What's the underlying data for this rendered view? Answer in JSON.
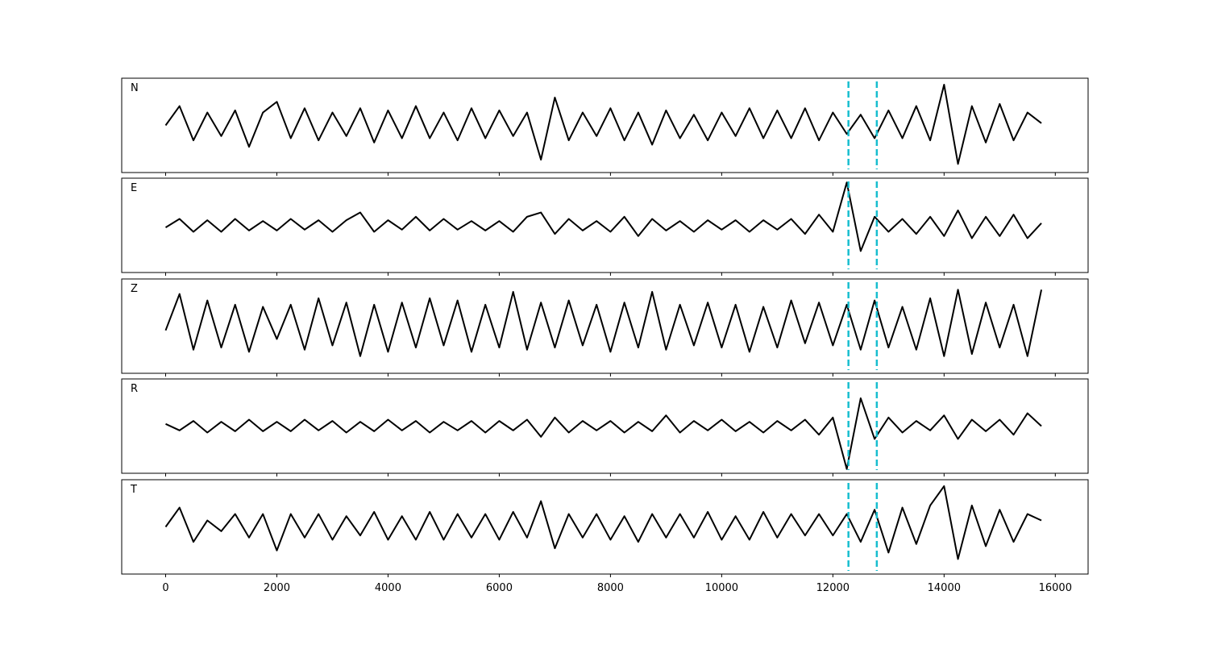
{
  "chart_data": [
    {
      "type": "line",
      "label": "N",
      "color": "#000000",
      "xlim": [
        -790,
        16590
      ],
      "ylim": [
        -1.1,
        1.1
      ],
      "vlines": [
        12280,
        12790
      ],
      "vline_color": "#17becf",
      "xticks": [
        0,
        2000,
        4000,
        6000,
        8000,
        10000,
        12000,
        14000,
        16000
      ],
      "x": [
        0,
        250,
        500,
        750,
        1000,
        1250,
        1500,
        1750,
        2000,
        2250,
        2500,
        2750,
        3000,
        3250,
        3500,
        3750,
        4000,
        4250,
        4500,
        4750,
        5000,
        5250,
        5500,
        5750,
        6000,
        6250,
        6500,
        6750,
        7000,
        7250,
        7500,
        7750,
        8000,
        8250,
        8500,
        8750,
        9000,
        9250,
        9500,
        9750,
        10000,
        10250,
        10500,
        10750,
        11000,
        11250,
        11500,
        11750,
        12000,
        12250,
        12500,
        12750,
        13000,
        13250,
        13500,
        13750,
        14000,
        14250,
        14500,
        14750,
        15000,
        15250,
        15500,
        15750
      ],
      "values": [
        0.0,
        0.45,
        -0.35,
        0.3,
        -0.25,
        0.35,
        -0.5,
        0.3,
        0.55,
        -0.3,
        0.4,
        -0.35,
        0.3,
        -0.25,
        0.4,
        -0.4,
        0.35,
        -0.3,
        0.45,
        -0.3,
        0.3,
        -0.35,
        0.4,
        -0.3,
        0.35,
        -0.25,
        0.3,
        -0.8,
        0.65,
        -0.35,
        0.3,
        -0.25,
        0.4,
        -0.35,
        0.3,
        -0.45,
        0.35,
        -0.3,
        0.25,
        -0.35,
        0.3,
        -0.25,
        0.4,
        -0.3,
        0.35,
        -0.3,
        0.4,
        -0.35,
        0.3,
        -0.2,
        0.25,
        -0.3,
        0.35,
        -0.3,
        0.45,
        -0.35,
        0.95,
        -0.9,
        0.45,
        -0.4,
        0.5,
        -0.35,
        0.3,
        0.05
      ]
    },
    {
      "type": "line",
      "label": "E",
      "color": "#000000",
      "xlim": [
        -790,
        16590
      ],
      "ylim": [
        -1.1,
        1.1
      ],
      "vlines": [
        12280,
        12790
      ],
      "vline_color": "#17becf",
      "xticks": [
        0,
        2000,
        4000,
        6000,
        8000,
        10000,
        12000,
        14000,
        16000
      ],
      "x": [
        0,
        250,
        500,
        750,
        1000,
        1250,
        1500,
        1750,
        2000,
        2250,
        2500,
        2750,
        3000,
        3250,
        3500,
        3750,
        4000,
        4250,
        4500,
        4750,
        5000,
        5250,
        5500,
        5750,
        6000,
        6250,
        6500,
        6750,
        7000,
        7250,
        7500,
        7750,
        8000,
        8250,
        8500,
        8750,
        9000,
        9250,
        9500,
        9750,
        10000,
        10250,
        10500,
        10750,
        11000,
        11250,
        11500,
        11750,
        12000,
        12250,
        12500,
        12750,
        13000,
        13250,
        13500,
        13750,
        14000,
        14250,
        14500,
        14750,
        15000,
        15250,
        15500,
        15750
      ],
      "values": [
        -0.05,
        0.15,
        -0.15,
        0.12,
        -0.15,
        0.15,
        -0.12,
        0.1,
        -0.12,
        0.15,
        -0.1,
        0.12,
        -0.15,
        0.12,
        0.3,
        -0.15,
        0.12,
        -0.1,
        0.2,
        -0.12,
        0.15,
        -0.1,
        0.1,
        -0.12,
        0.1,
        -0.15,
        0.2,
        0.3,
        -0.2,
        0.15,
        -0.12,
        0.1,
        -0.15,
        0.2,
        -0.25,
        0.15,
        -0.12,
        0.1,
        -0.15,
        0.12,
        -0.1,
        0.12,
        -0.15,
        0.12,
        -0.1,
        0.15,
        -0.2,
        0.25,
        -0.15,
        1.0,
        -0.6,
        0.2,
        -0.15,
        0.15,
        -0.2,
        0.2,
        -0.25,
        0.35,
        -0.3,
        0.2,
        -0.25,
        0.25,
        -0.3,
        0.05
      ]
    },
    {
      "type": "line",
      "label": "Z",
      "color": "#000000",
      "xlim": [
        -790,
        16590
      ],
      "ylim": [
        -1.1,
        1.1
      ],
      "vlines": [
        12280,
        12790
      ],
      "vline_color": "#17becf",
      "xticks": [
        0,
        2000,
        4000,
        6000,
        8000,
        10000,
        12000,
        14000,
        16000
      ],
      "x": [
        0,
        250,
        500,
        750,
        1000,
        1250,
        1500,
        1750,
        2000,
        2250,
        2500,
        2750,
        3000,
        3250,
        3500,
        3750,
        4000,
        4250,
        4500,
        4750,
        5000,
        5250,
        5500,
        5750,
        6000,
        6250,
        6500,
        6750,
        7000,
        7250,
        7500,
        7750,
        8000,
        8250,
        8500,
        8750,
        9000,
        9250,
        9500,
        9750,
        10000,
        10250,
        10500,
        10750,
        11000,
        11250,
        11500,
        11750,
        12000,
        12250,
        12500,
        12750,
        13000,
        13250,
        13500,
        13750,
        14000,
        14250,
        14500,
        14750,
        15000,
        15250,
        15500,
        15750
      ],
      "values": [
        -0.1,
        0.75,
        -0.55,
        0.6,
        -0.5,
        0.5,
        -0.6,
        0.45,
        -0.3,
        0.5,
        -0.55,
        0.65,
        -0.45,
        0.55,
        -0.7,
        0.5,
        -0.6,
        0.55,
        -0.5,
        0.65,
        -0.45,
        0.6,
        -0.6,
        0.5,
        -0.5,
        0.8,
        -0.55,
        0.55,
        -0.5,
        0.6,
        -0.45,
        0.5,
        -0.6,
        0.55,
        -0.5,
        0.8,
        -0.55,
        0.5,
        -0.45,
        0.55,
        -0.5,
        0.5,
        -0.6,
        0.45,
        -0.5,
        0.6,
        -0.4,
        0.55,
        -0.45,
        0.5,
        -0.55,
        0.6,
        -0.5,
        0.45,
        -0.55,
        0.65,
        -0.7,
        0.85,
        -0.65,
        0.55,
        -0.5,
        0.5,
        -0.7,
        0.85
      ]
    },
    {
      "type": "line",
      "label": "R",
      "color": "#000000",
      "xlim": [
        -790,
        16590
      ],
      "ylim": [
        -1.1,
        1.1
      ],
      "vlines": [
        12280,
        12790
      ],
      "vline_color": "#17becf",
      "xticks": [
        0,
        2000,
        4000,
        6000,
        8000,
        10000,
        12000,
        14000,
        16000
      ],
      "x": [
        0,
        250,
        500,
        750,
        1000,
        1250,
        1500,
        1750,
        2000,
        2250,
        2500,
        2750,
        3000,
        3250,
        3500,
        3750,
        4000,
        4250,
        4500,
        4750,
        5000,
        5250,
        5500,
        5750,
        6000,
        6250,
        6500,
        6750,
        7000,
        7250,
        7500,
        7750,
        8000,
        8250,
        8500,
        8750,
        9000,
        9250,
        9500,
        9750,
        10000,
        10250,
        10500,
        10750,
        11000,
        11250,
        11500,
        11750,
        12000,
        12250,
        12500,
        12750,
        13000,
        13250,
        13500,
        13750,
        14000,
        14250,
        14500,
        14750,
        15000,
        15250,
        15500,
        15750
      ],
      "values": [
        0.05,
        -0.1,
        0.12,
        -0.15,
        0.1,
        -0.12,
        0.15,
        -0.12,
        0.1,
        -0.12,
        0.15,
        -0.1,
        0.12,
        -0.15,
        0.1,
        -0.12,
        0.15,
        -0.1,
        0.12,
        -0.15,
        0.1,
        -0.1,
        0.12,
        -0.15,
        0.12,
        -0.1,
        0.15,
        -0.25,
        0.2,
        -0.15,
        0.12,
        -0.1,
        0.12,
        -0.15,
        0.1,
        -0.12,
        0.25,
        -0.15,
        0.12,
        -0.1,
        0.15,
        -0.12,
        0.1,
        -0.15,
        0.12,
        -0.1,
        0.15,
        -0.2,
        0.2,
        -1.0,
        0.65,
        -0.3,
        0.2,
        -0.15,
        0.12,
        -0.1,
        0.25,
        -0.3,
        0.15,
        -0.12,
        0.15,
        -0.2,
        0.3,
        0.0
      ]
    },
    {
      "type": "line",
      "label": "T",
      "color": "#000000",
      "xlim": [
        -790,
        16590
      ],
      "ylim": [
        -1.1,
        1.1
      ],
      "vlines": [
        12280,
        12790
      ],
      "vline_color": "#17becf",
      "xticks": [
        0,
        2000,
        4000,
        6000,
        8000,
        10000,
        12000,
        14000,
        16000
      ],
      "x": [
        0,
        250,
        500,
        750,
        1000,
        1250,
        1500,
        1750,
        2000,
        2250,
        2500,
        2750,
        3000,
        3250,
        3500,
        3750,
        4000,
        4250,
        4500,
        4750,
        5000,
        5250,
        5500,
        5750,
        6000,
        6250,
        6500,
        6750,
        7000,
        7250,
        7500,
        7750,
        8000,
        8250,
        8500,
        8750,
        9000,
        9250,
        9500,
        9750,
        10000,
        10250,
        10500,
        10750,
        11000,
        11250,
        11500,
        11750,
        12000,
        12250,
        12500,
        12750,
        13000,
        13250,
        13500,
        13750,
        14000,
        14250,
        14500,
        14750,
        15000,
        15250,
        15500,
        15750
      ],
      "values": [
        0.0,
        0.45,
        -0.35,
        0.15,
        -0.1,
        0.3,
        -0.25,
        0.3,
        -0.55,
        0.3,
        -0.25,
        0.3,
        -0.3,
        0.25,
        -0.2,
        0.35,
        -0.3,
        0.25,
        -0.3,
        0.35,
        -0.3,
        0.3,
        -0.25,
        0.3,
        -0.3,
        0.35,
        -0.25,
        0.6,
        -0.5,
        0.3,
        -0.25,
        0.3,
        -0.3,
        0.25,
        -0.35,
        0.3,
        -0.25,
        0.3,
        -0.25,
        0.35,
        -0.3,
        0.25,
        -0.3,
        0.35,
        -0.25,
        0.3,
        -0.2,
        0.3,
        -0.2,
        0.3,
        -0.35,
        0.4,
        -0.6,
        0.45,
        -0.4,
        0.5,
        0.95,
        -0.75,
        0.5,
        -0.45,
        0.4,
        -0.35,
        0.3,
        0.15
      ]
    }
  ]
}
